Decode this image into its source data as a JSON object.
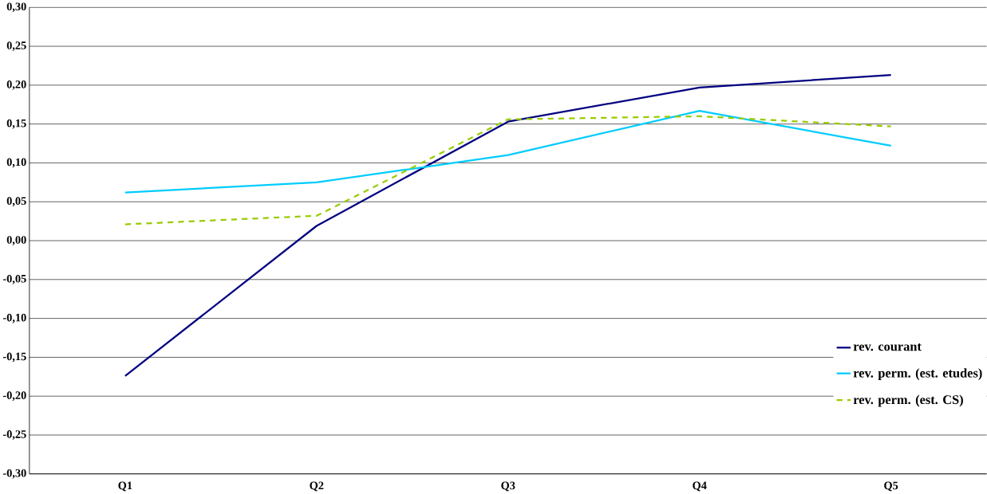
{
  "chart_data": {
    "type": "line",
    "categories": [
      "Q1",
      "Q2",
      "Q3",
      "Q4",
      "Q5"
    ],
    "series": [
      {
        "name": "rev. courant",
        "color": "#000080",
        "values": [
          -0.174,
          0.019,
          0.153,
          0.197,
          0.213
        ]
      },
      {
        "name": "rev. perm. (est. etudes)",
        "color": "#00ccff",
        "values": [
          0.062,
          0.075,
          0.11,
          0.167,
          0.122
        ]
      },
      {
        "name": "rev. perm. (est. CS)",
        "color": "#99cc00",
        "line_style": "dashed",
        "values": [
          0.021,
          0.032,
          0.156,
          0.16,
          0.147
        ]
      }
    ],
    "ylim": [
      -0.3,
      0.3
    ],
    "yticks": [
      {
        "value": -0.3,
        "label": "-0,30"
      },
      {
        "value": -0.25,
        "label": "-0,25"
      },
      {
        "value": -0.2,
        "label": "-0,20"
      },
      {
        "value": -0.15,
        "label": "-0,15"
      },
      {
        "value": -0.1,
        "label": "-0,10"
      },
      {
        "value": -0.05,
        "label": "-0,05"
      },
      {
        "value": 0,
        "label": "0,00"
      },
      {
        "value": 0.05,
        "label": "0,05"
      },
      {
        "value": 0.1,
        "label": "0,10"
      },
      {
        "value": 0.15,
        "label": "0,15"
      },
      {
        "value": 0.2,
        "label": "0,20"
      },
      {
        "value": 0.25,
        "label": "0,25"
      },
      {
        "value": 0.3,
        "label": "0,30"
      }
    ],
    "grid": "y",
    "legend": "bottom right",
    "marker": "none",
    "line_style": "solid"
  }
}
